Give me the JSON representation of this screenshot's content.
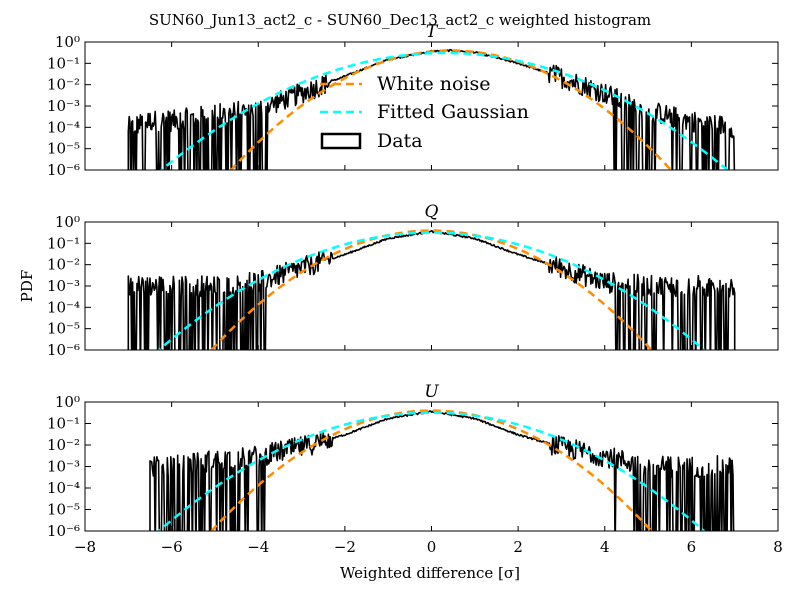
{
  "figure": {
    "title": "SUN60_Jun13_act2_c - SUN60_Dec13_act2_c weighted histogram",
    "ylabel": "PDF",
    "xlabel": "Weighted difference [σ]"
  },
  "legend": {
    "items": [
      {
        "label": "White noise",
        "style": "orange-dashed"
      },
      {
        "label": "Fitted Gaussian",
        "style": "cyan-dashed"
      },
      {
        "label": "Data",
        "style": "black-box"
      }
    ],
    "location": "upper-center of top panel"
  },
  "colors": {
    "white_noise": "#ff8c00",
    "fitted_gaussian": "#00ffff",
    "data": "#000000"
  },
  "chart_data": [
    {
      "type": "line",
      "title": "T",
      "xlim": [
        -8,
        8
      ],
      "ylim": [
        1e-06,
        1
      ],
      "yscale": "log",
      "x_ticks": [
        -8,
        -6,
        -4,
        -2,
        0,
        2,
        4,
        6,
        8
      ],
      "y_ticks": [
        "10^0",
        "10^-1",
        "10^-2",
        "10^-3",
        "10^-4",
        "10^-5",
        "10^-6"
      ],
      "series": [
        {
          "name": "White noise",
          "model": "gaussian",
          "mean": 0.45,
          "sigma": 1.0
        },
        {
          "name": "Fitted Gaussian",
          "model": "gaussian",
          "mean": 0.3,
          "sigma": 1.3
        },
        {
          "name": "Data",
          "model": "histogram",
          "x": [
            -7.0,
            -6.5,
            -6.0,
            -5.0,
            -4.0,
            -3.0,
            -2.0,
            -1.0,
            0.0,
            0.5,
            1.0,
            2.0,
            3.0,
            4.0,
            4.5,
            5.0,
            6.0,
            7.0
          ],
          "y": [
            0.0001,
            0.0002,
            0.0002,
            0.0004,
            0.0007,
            0.004,
            0.025,
            0.15,
            0.37,
            0.4,
            0.33,
            0.1,
            0.022,
            0.004,
            0.0013,
            0.0006,
            0.0002,
            0.0001
          ]
        }
      ]
    },
    {
      "type": "line",
      "title": "Q",
      "xlim": [
        -8,
        8
      ],
      "ylim": [
        1e-06,
        1
      ],
      "yscale": "log",
      "x_ticks": [
        -8,
        -6,
        -4,
        -2,
        0,
        2,
        4,
        6,
        8
      ],
      "y_ticks": [
        "10^0",
        "10^-1",
        "10^-2",
        "10^-3",
        "10^-4",
        "10^-5",
        "10^-6"
      ],
      "series": [
        {
          "name": "White noise",
          "model": "gaussian",
          "mean": 0.0,
          "sigma": 1.0
        },
        {
          "name": "Fitted Gaussian",
          "model": "gaussian",
          "mean": 0.0,
          "sigma": 1.25
        },
        {
          "name": "Data",
          "model": "histogram",
          "x": [
            -7.0,
            -6.0,
            -5.0,
            -4.0,
            -3.0,
            -2.0,
            -1.0,
            0.0,
            1.0,
            2.0,
            3.0,
            4.0,
            5.0,
            6.0,
            7.0
          ],
          "y": [
            0.001,
            0.001,
            0.001,
            0.0015,
            0.007,
            0.03,
            0.17,
            0.36,
            0.17,
            0.03,
            0.007,
            0.0015,
            0.001,
            0.001,
            0.001
          ]
        }
      ]
    },
    {
      "type": "line",
      "title": "U",
      "xlim": [
        -8,
        8
      ],
      "ylim": [
        1e-06,
        1
      ],
      "yscale": "log",
      "x_ticks": [
        -8,
        -6,
        -4,
        -2,
        0,
        2,
        4,
        6,
        8
      ],
      "y_ticks": [
        "10^0",
        "10^-1",
        "10^-2",
        "10^-3",
        "10^-4",
        "10^-5",
        "10^-6"
      ],
      "series": [
        {
          "name": "White noise",
          "model": "gaussian",
          "mean": 0.0,
          "sigma": 1.0
        },
        {
          "name": "Fitted Gaussian",
          "model": "gaussian",
          "mean": 0.0,
          "sigma": 1.25
        },
        {
          "name": "Data",
          "model": "histogram",
          "x": [
            -6.5,
            -6.0,
            -5.0,
            -4.0,
            -3.0,
            -2.0,
            -1.0,
            0.0,
            1.0,
            2.0,
            3.0,
            4.0,
            5.0,
            6.0,
            7.0
          ],
          "y": [
            0.001,
            0.001,
            0.002,
            0.003,
            0.008,
            0.03,
            0.17,
            0.36,
            0.17,
            0.03,
            0.008,
            0.003,
            0.001,
            0.001,
            0.001
          ]
        }
      ]
    }
  ]
}
